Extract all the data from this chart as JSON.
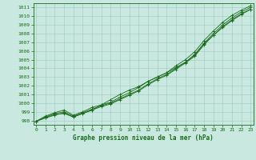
{
  "title": "Graphe pression niveau de la mer (hPa)",
  "bg_color": "#c8e8e0",
  "grid_color": "#a0c8c0",
  "line_color": "#1a6b1a",
  "xlim": [
    -0.3,
    23.3
  ],
  "ylim": [
    997.5,
    1011.5
  ],
  "yticks": [
    998,
    999,
    1000,
    1001,
    1002,
    1003,
    1004,
    1005,
    1006,
    1007,
    1008,
    1009,
    1010,
    1011
  ],
  "xticks": [
    0,
    1,
    2,
    3,
    4,
    5,
    6,
    7,
    8,
    9,
    10,
    11,
    12,
    13,
    14,
    15,
    16,
    17,
    18,
    19,
    20,
    21,
    22,
    23
  ],
  "line1": [
    997.9,
    998.5,
    998.9,
    999.2,
    998.6,
    999.0,
    999.5,
    999.8,
    1000.1,
    1000.7,
    1001.2,
    1001.8,
    1002.5,
    1003.0,
    1003.5,
    1004.3,
    1005.0,
    1005.9,
    1007.2,
    1008.3,
    1009.3,
    1010.1,
    1010.7,
    1011.2
  ],
  "line2": [
    997.9,
    998.4,
    998.8,
    999.0,
    998.5,
    998.9,
    999.3,
    999.7,
    1000.0,
    1000.5,
    1001.0,
    1001.5,
    1002.2,
    1002.8,
    1003.3,
    1004.0,
    1004.7,
    1005.6,
    1006.9,
    1008.0,
    1009.0,
    1009.8,
    1010.5,
    1011.0
  ],
  "line3": [
    997.9,
    998.3,
    998.7,
    998.8,
    998.4,
    998.8,
    999.2,
    999.6,
    999.9,
    1000.4,
    1000.9,
    1001.4,
    1002.1,
    1002.7,
    1003.2,
    1003.9,
    1004.6,
    1005.4,
    1006.7,
    1007.8,
    1008.8,
    1009.6,
    1010.3,
    1010.8
  ],
  "line4": [
    997.9,
    998.3,
    998.6,
    998.9,
    998.4,
    998.8,
    999.2,
    999.8,
    1000.4,
    1001.0,
    1001.5,
    1001.9,
    1002.5,
    1003.0,
    1003.5,
    1004.1,
    1004.7,
    1005.5,
    1006.8,
    1007.8,
    1008.7,
    1009.5,
    1010.2,
    1010.8
  ]
}
